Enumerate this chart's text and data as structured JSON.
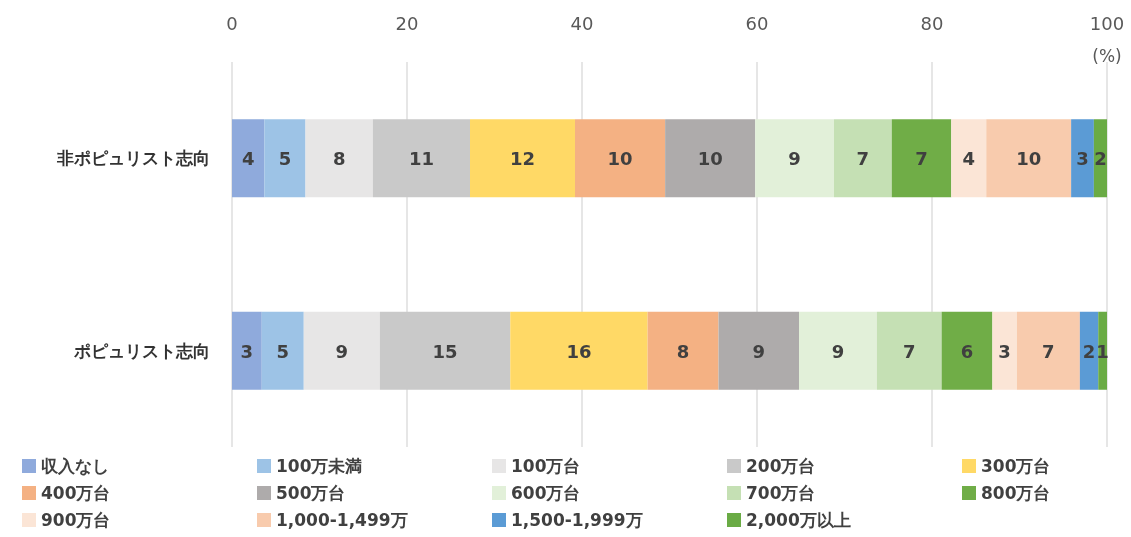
{
  "chart_data": {
    "type": "bar",
    "orientation": "horizontal",
    "stacked": true,
    "xlabel": "(%)",
    "categories": [
      "非ポピュリスト志向",
      "ポピュリスト志向"
    ],
    "xlim": [
      0,
      100
    ],
    "xticks": [
      0,
      20,
      40,
      60,
      80,
      100
    ],
    "grid": "x",
    "legend": "bottom",
    "series": [
      {
        "name": "収入なし",
        "color": "#8faadc",
        "values": [
          3.7,
          3.4
        ],
        "value_labels": [
          "4",
          "3"
        ]
      },
      {
        "name": "100万未満",
        "color": "#9dc3e6",
        "values": [
          4.7,
          4.8
        ],
        "value_labels": [
          "5",
          "5"
        ]
      },
      {
        "name": "100万台",
        "color": "#e7e6e6",
        "values": [
          7.7,
          8.7
        ],
        "value_labels": [
          "8",
          "9"
        ]
      },
      {
        "name": "200万台",
        "color": "#c9c9c9",
        "values": [
          11.1,
          14.9
        ],
        "value_labels": [
          "11",
          "15"
        ]
      },
      {
        "name": "300万台",
        "color": "#ffd966",
        "values": [
          12.0,
          15.7
        ],
        "value_labels": [
          "12",
          "16"
        ]
      },
      {
        "name": "400万台",
        "color": "#f4b183",
        "values": [
          10.3,
          8.1
        ],
        "value_labels": [
          "10",
          "8"
        ]
      },
      {
        "name": "500万台",
        "color": "#aeabab",
        "values": [
          10.3,
          9.2
        ],
        "value_labels": [
          "10",
          "9"
        ]
      },
      {
        "name": "600万台",
        "color": "#e2f0d9",
        "values": [
          9.0,
          8.9
        ],
        "value_labels": [
          "9",
          "9"
        ]
      },
      {
        "name": "700万台",
        "color": "#c5e0b4",
        "values": [
          6.6,
          7.4
        ],
        "value_labels": [
          "7",
          "7"
        ]
      },
      {
        "name": "800万台",
        "color": "#70ad47",
        "values": [
          6.8,
          5.8
        ],
        "value_labels": [
          "7",
          "6"
        ]
      },
      {
        "name": "900万台",
        "color": "#fbe5d6",
        "values": [
          4.0,
          2.8
        ],
        "value_labels": [
          "4",
          "3"
        ]
      },
      {
        "name": "1,000-1,499万",
        "color": "#f8cbad",
        "values": [
          9.7,
          7.2
        ],
        "value_labels": [
          "10",
          "7"
        ]
      },
      {
        "name": "1,500-1,999万",
        "color": "#5b9bd5",
        "values": [
          2.6,
          2.1
        ],
        "value_labels": [
          "3",
          "2"
        ]
      },
      {
        "name": "2,000万以上",
        "color": "#6aab45",
        "values": [
          1.5,
          1.0
        ],
        "value_labels": [
          "2",
          "1"
        ]
      }
    ]
  }
}
